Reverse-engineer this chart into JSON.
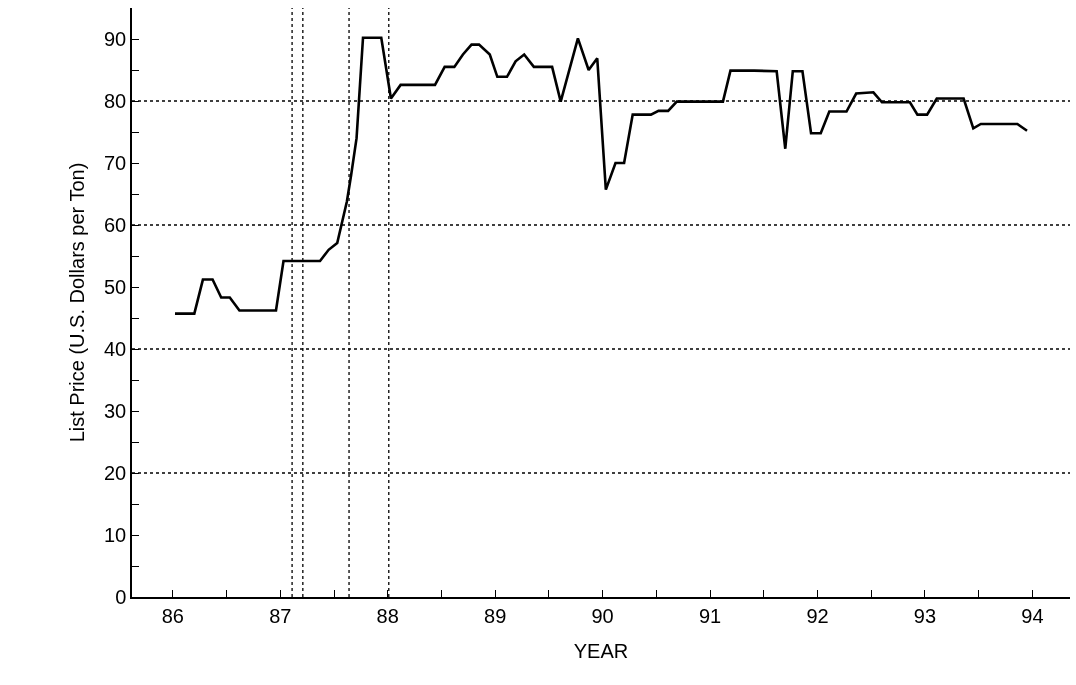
{
  "chart_data": {
    "type": "line",
    "xlabel": "YEAR",
    "ylabel": "List Price (U.S. Dollars per Ton)",
    "x": [
      86.02,
      86.2,
      86.28,
      86.37,
      86.45,
      86.53,
      86.62,
      86.96,
      87.03,
      87.37,
      87.45,
      87.53,
      87.62,
      87.66,
      87.71,
      87.77,
      87.94,
      88.03,
      88.12,
      88.44,
      88.53,
      88.62,
      88.7,
      88.78,
      88.85,
      88.95,
      89.02,
      89.11,
      89.19,
      89.27,
      89.36,
      89.53,
      89.61,
      89.77,
      89.87,
      89.95,
      90.03,
      90.12,
      90.2,
      90.28,
      90.45,
      90.52,
      90.61,
      90.69,
      91.12,
      91.19,
      91.41,
      91.62,
      91.7,
      91.77,
      91.86,
      91.94,
      92.03,
      92.11,
      92.27,
      92.36,
      92.52,
      92.6,
      92.86,
      92.93,
      93.02,
      93.11,
      93.36,
      93.45,
      93.52,
      93.86,
      93.95
    ],
    "series": [
      {
        "color": "#000000",
        "values": [
          45.7,
          45.7,
          51.2,
          51.2,
          48.3,
          48.3,
          46.2,
          46.2,
          54.2,
          54.2,
          56.0,
          57.1,
          63.8,
          68.1,
          74.0,
          90.2,
          90.2,
          80.4,
          82.6,
          82.6,
          85.5,
          85.5,
          87.5,
          89.1,
          89.1,
          87.5,
          83.9,
          83.9,
          86.4,
          87.5,
          85.5,
          85.5,
          79.9,
          90.1,
          85.0,
          86.9,
          65.7,
          70.0,
          70.0,
          77.8,
          77.8,
          78.4,
          78.4,
          79.9,
          79.9,
          84.9,
          84.9,
          84.8,
          72.3,
          84.8,
          84.8,
          74.8,
          74.8,
          78.3,
          78.3,
          81.2,
          81.4,
          79.8,
          79.8,
          77.8,
          77.8,
          80.4,
          80.4,
          75.6,
          76.3,
          76.3,
          75.2
        ]
      }
    ],
    "xlim": [
      85.62,
      94.35
    ],
    "ylim": [
      0,
      95
    ],
    "xticks": [
      86,
      {
        "value": 86.5,
        "label": null
      },
      87,
      {
        "value": 87.5,
        "label": null
      },
      88,
      {
        "value": 88.5,
        "label": null
      },
      89,
      {
        "value": 89.5,
        "label": null
      },
      90,
      {
        "value": 90.5,
        "label": null
      },
      91,
      {
        "value": 91.5,
        "label": null
      },
      92,
      {
        "value": 92.5,
        "label": null
      },
      93,
      {
        "value": 93.5,
        "label": null
      },
      94
    ],
    "yticks": [
      0,
      {
        "value": 5,
        "label": null
      },
      10,
      {
        "value": 15,
        "label": null
      },
      20,
      {
        "value": 25,
        "label": null
      },
      30,
      {
        "value": 35,
        "label": null
      },
      40,
      {
        "value": 45,
        "label": null
      },
      50,
      {
        "value": 55,
        "label": null
      },
      60,
      {
        "value": 65,
        "label": null
      },
      70,
      {
        "value": 75,
        "label": null
      },
      80,
      {
        "value": 85,
        "label": null
      },
      90
    ],
    "ref_lines": [
      {
        "axis": "y",
        "value": 20,
        "color": "#000000",
        "line_style": "dotted"
      },
      {
        "axis": "y",
        "value": 40,
        "color": "#000000",
        "line_style": "dotted"
      },
      {
        "axis": "y",
        "value": 60,
        "color": "#000000",
        "line_style": "dotted"
      },
      {
        "axis": "y",
        "value": 80,
        "color": "#000000",
        "line_style": "dotted"
      },
      {
        "axis": "x",
        "value": 87.11,
        "color": "#000000",
        "line_style": "dotted"
      },
      {
        "axis": "x",
        "value": 87.21,
        "color": "#000000",
        "line_style": "dotted"
      },
      {
        "axis": "x",
        "value": 87.64,
        "color": "#000000",
        "line_style": "dotted"
      },
      {
        "axis": "x",
        "value": 88.01,
        "color": "#000000",
        "line_style": "dotted"
      }
    ],
    "grid": false,
    "marker": "none",
    "line_style": "solid"
  }
}
